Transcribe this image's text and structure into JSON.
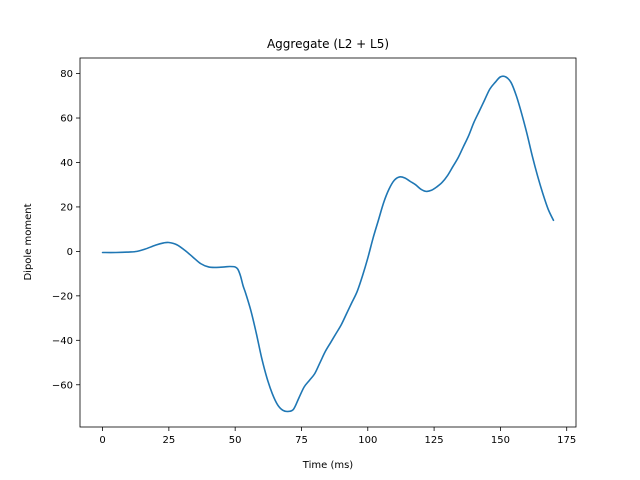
{
  "chart_data": {
    "type": "line",
    "title": "Aggregate (L2 + L5)",
    "xlabel": "Time (ms)",
    "ylabel": "Dipole moment",
    "xlim": [
      -8.5,
      178.5
    ],
    "ylim": [
      -79,
      87
    ],
    "xticks": [
      0,
      25,
      50,
      75,
      100,
      125,
      150,
      175
    ],
    "yticks": [
      -60,
      -40,
      -20,
      0,
      20,
      40,
      60,
      80
    ],
    "xtick_labels": [
      "0",
      "25",
      "50",
      "75",
      "100",
      "125",
      "150",
      "175"
    ],
    "ytick_labels": [
      "−60",
      "−40",
      "−20",
      "0",
      "20",
      "40",
      "60",
      "80"
    ],
    "grid": false,
    "line_color": "#1f77b4",
    "series": [
      {
        "name": "Aggregate (L2 + L5)",
        "x": [
          0,
          5,
          10,
          13,
          16,
          20,
          23,
          25,
          28,
          31,
          34,
          37,
          40,
          43,
          46,
          48,
          50,
          51,
          52,
          53,
          54,
          56,
          58,
          60,
          62,
          64,
          66,
          68,
          70,
          72,
          74,
          76,
          78,
          80,
          82,
          84,
          86,
          88,
          90,
          92,
          94,
          96,
          98,
          100,
          102,
          104,
          106,
          108,
          110,
          112,
          114,
          116,
          118,
          120,
          122,
          124,
          126,
          128,
          130,
          132,
          134,
          136,
          138,
          140,
          142,
          144,
          146,
          148,
          150,
          152,
          154,
          156,
          158,
          160,
          162,
          164,
          166,
          168,
          170
        ],
        "y": [
          -0.5,
          -0.5,
          -0.3,
          0.0,
          1.0,
          2.8,
          3.8,
          4.0,
          3.0,
          0.5,
          -2.5,
          -5.5,
          -7.0,
          -7.2,
          -7.0,
          -6.8,
          -7.0,
          -8.0,
          -11.0,
          -15.5,
          -19.0,
          -27.0,
          -37.0,
          -48.0,
          -57.0,
          -64.0,
          -69.0,
          -71.5,
          -72.0,
          -71.0,
          -66.0,
          -61.0,
          -58.0,
          -55.0,
          -50.0,
          -45.0,
          -41.0,
          -37.0,
          -33.0,
          -28.0,
          -23.0,
          -18.0,
          -11.0,
          -3.0,
          6.0,
          14.0,
          22.0,
          28.0,
          32.0,
          33.5,
          33.0,
          31.5,
          30.0,
          28.0,
          27.0,
          27.5,
          29.0,
          31.0,
          34.0,
          38.0,
          42.0,
          47.0,
          52.0,
          58.0,
          63.0,
          68.0,
          73.0,
          76.0,
          78.5,
          78.5,
          76.0,
          70.0,
          62.0,
          53.0,
          43.0,
          34.0,
          26.0,
          19.0,
          14.0
        ]
      }
    ]
  }
}
